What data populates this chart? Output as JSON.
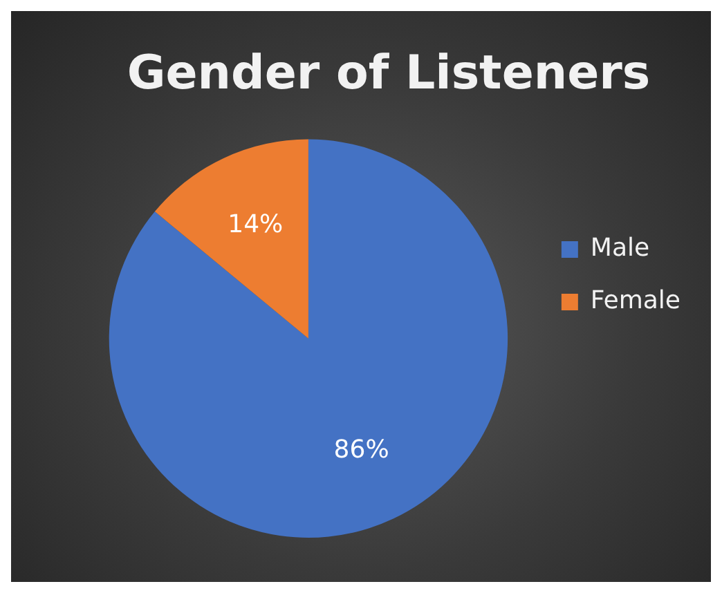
{
  "chart_data": {
    "type": "pie",
    "title": "Gender of Listeners",
    "categories": [
      "Male",
      "Female"
    ],
    "values": [
      86,
      14
    ],
    "colors": [
      "#4472c4",
      "#ed7d31"
    ],
    "value_labels": [
      "86%",
      "14%"
    ],
    "legend": "right"
  }
}
